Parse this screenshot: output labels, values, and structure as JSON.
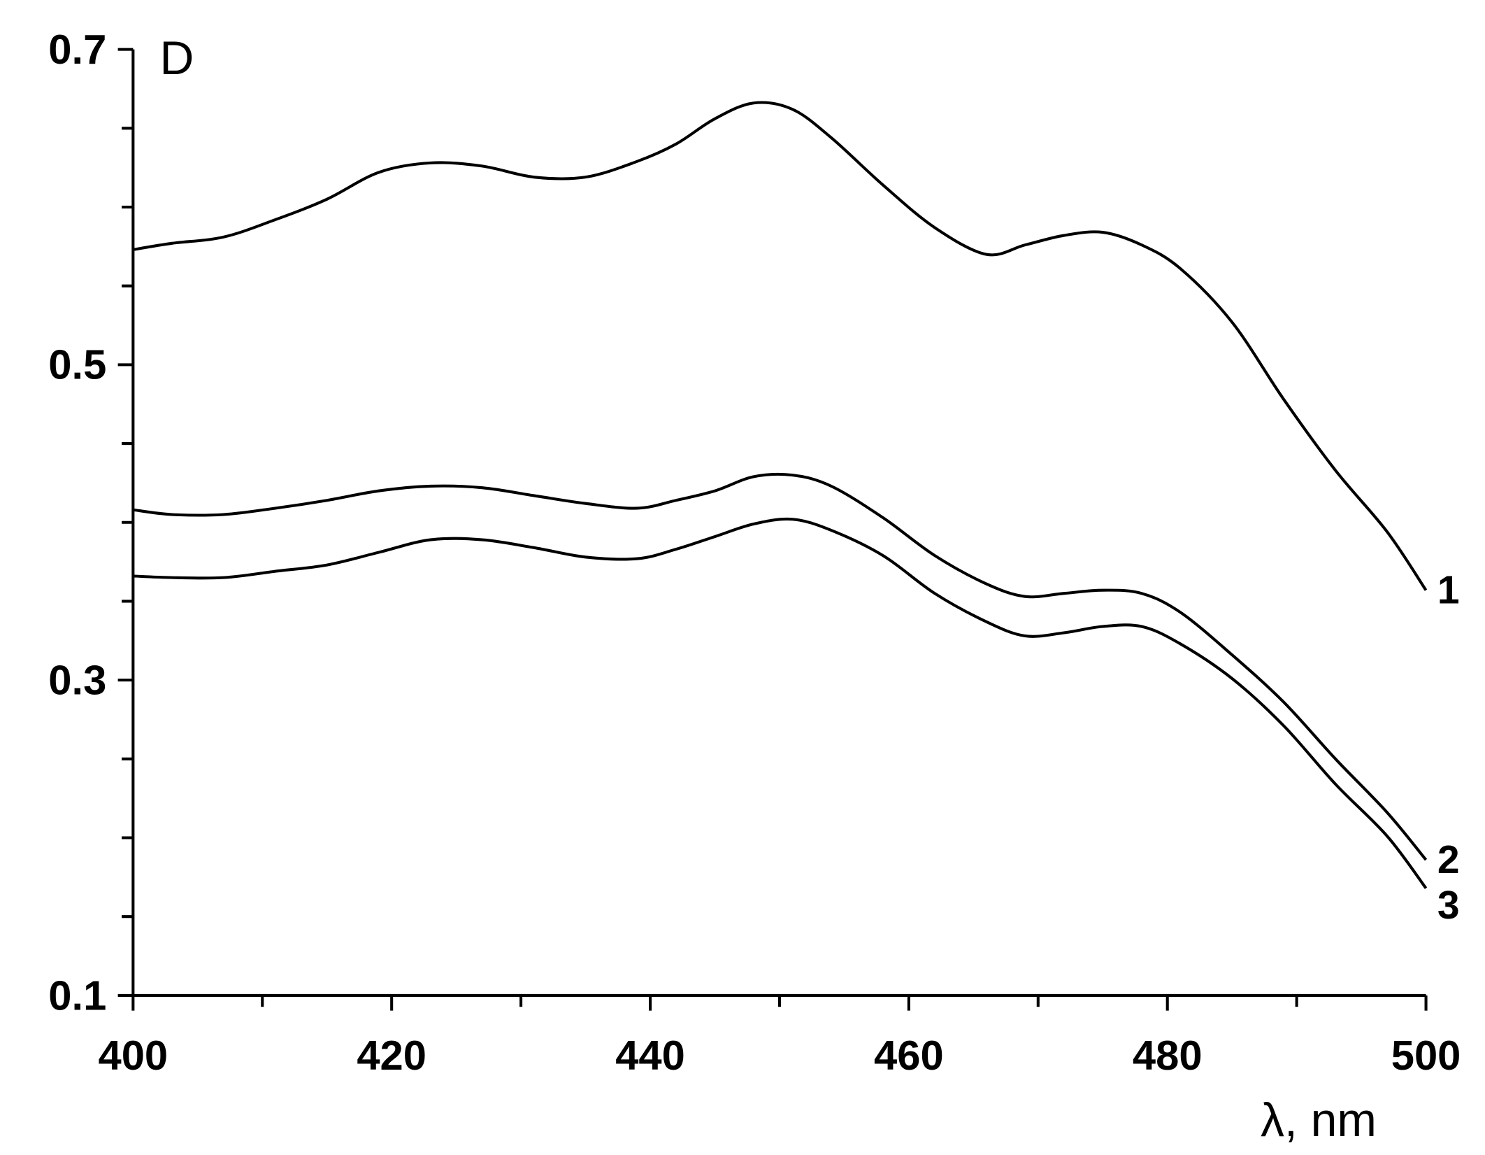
{
  "chart_data": {
    "type": "line",
    "xlabel": "λ, nm",
    "ylabel": "D",
    "xlim": [
      400,
      500
    ],
    "ylim": [
      0.1,
      0.7
    ],
    "xticks": [
      400,
      420,
      440,
      460,
      480,
      500
    ],
    "xminorticks": [
      410,
      430,
      450,
      470,
      490
    ],
    "yticks": [
      0.1,
      0.3,
      0.5,
      0.7
    ],
    "yminorticks": [
      0.15,
      0.2,
      0.25,
      0.35,
      0.4,
      0.45,
      0.55,
      0.6,
      0.65
    ],
    "x": [
      400,
      403,
      407,
      411,
      415,
      419,
      423,
      427,
      431,
      435,
      439,
      442,
      445,
      448,
      451,
      454,
      458,
      462,
      466,
      469,
      472,
      475,
      478,
      481,
      485,
      489,
      493,
      497,
      500
    ],
    "series": [
      {
        "name": "1",
        "color": "#000000",
        "values": [
          0.573,
          0.577,
          0.581,
          0.592,
          0.605,
          0.622,
          0.628,
          0.626,
          0.619,
          0.619,
          0.629,
          0.64,
          0.656,
          0.666,
          0.662,
          0.644,
          0.614,
          0.587,
          0.57,
          0.576,
          0.582,
          0.584,
          0.576,
          0.561,
          0.527,
          0.478,
          0.433,
          0.394,
          0.357
        ]
      },
      {
        "name": "2",
        "color": "#000000",
        "values": [
          0.408,
          0.405,
          0.405,
          0.409,
          0.414,
          0.42,
          0.423,
          0.422,
          0.417,
          0.412,
          0.409,
          0.414,
          0.42,
          0.429,
          0.43,
          0.423,
          0.403,
          0.379,
          0.361,
          0.353,
          0.355,
          0.357,
          0.355,
          0.343,
          0.316,
          0.286,
          0.25,
          0.216,
          0.186
        ]
      },
      {
        "name": "3",
        "color": "#000000",
        "values": [
          0.366,
          0.365,
          0.365,
          0.369,
          0.373,
          0.381,
          0.389,
          0.389,
          0.384,
          0.378,
          0.377,
          0.383,
          0.391,
          0.399,
          0.402,
          0.395,
          0.379,
          0.355,
          0.337,
          0.328,
          0.33,
          0.334,
          0.334,
          0.323,
          0.301,
          0.271,
          0.234,
          0.201,
          0.168
        ]
      }
    ]
  }
}
